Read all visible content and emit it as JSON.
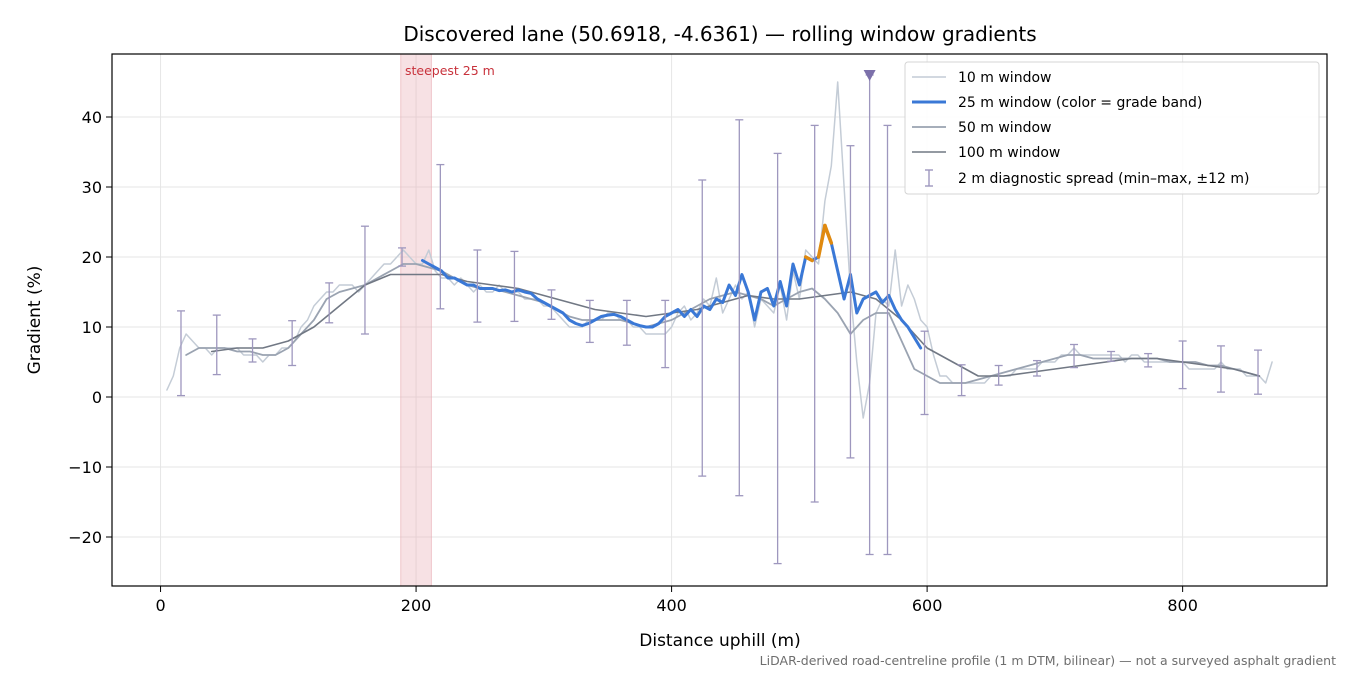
{
  "chart_data": {
    "type": "line",
    "title": "Discovered lane (50.6918, -4.6361) — rolling window gradients",
    "xlabel": "Distance uphill (m)",
    "ylabel": "Gradient (%)",
    "xlim": [
      -38,
      913
    ],
    "ylim": [
      -27,
      49
    ],
    "x_ticks": [
      0,
      200,
      400,
      600,
      800
    ],
    "y_ticks": [
      -20,
      -10,
      0,
      10,
      20,
      30,
      40
    ],
    "grid": true,
    "legend_position": "top-right",
    "footnote": "LiDAR-derived road-centreline profile (1 m DTM, bilinear) — not a surveyed asphalt gradient",
    "colors": {
      "w10": "#c4ccd6",
      "w25": "#3a78d6",
      "w25_steep": "#e08a10",
      "w50": "#9aa3b1",
      "w100": "#717884",
      "spread": "#9e97be",
      "steepest_band": "#e8aab2",
      "marker": "#7c70aa",
      "annotation": "#c8323c"
    },
    "steepest_window": {
      "label": "steepest 25 m",
      "x_start": 188,
      "x_end": 212
    },
    "peak_marker": {
      "x": 555,
      "y": 46
    },
    "legend": [
      {
        "key": "w10",
        "label": "10 m window"
      },
      {
        "key": "w25",
        "label": "25 m window (color = grade band)"
      },
      {
        "key": "w50",
        "label": "50 m window"
      },
      {
        "key": "w100",
        "label": "100 m window"
      },
      {
        "key": "spread",
        "label": "2 m diagnostic spread (min–max, ±12 m)"
      }
    ],
    "series": [
      {
        "name": "10 m window",
        "x": [
          5,
          10,
          15,
          20,
          25,
          30,
          35,
          40,
          45,
          50,
          55,
          60,
          65,
          70,
          75,
          80,
          85,
          90,
          95,
          100,
          105,
          110,
          115,
          120,
          125,
          130,
          135,
          140,
          145,
          150,
          155,
          160,
          165,
          170,
          175,
          180,
          185,
          190,
          195,
          200,
          205,
          210,
          215,
          220,
          225,
          230,
          235,
          240,
          245,
          250,
          255,
          260,
          265,
          270,
          275,
          280,
          285,
          290,
          295,
          300,
          305,
          310,
          315,
          320,
          325,
          330,
          335,
          340,
          345,
          350,
          355,
          360,
          365,
          370,
          375,
          380,
          385,
          390,
          395,
          400,
          405,
          410,
          415,
          420,
          425,
          430,
          435,
          440,
          445,
          450,
          455,
          460,
          465,
          470,
          475,
          480,
          485,
          490,
          495,
          500,
          505,
          510,
          515,
          520,
          525,
          530,
          535,
          540,
          545,
          550,
          555,
          560,
          565,
          570,
          575,
          580,
          585,
          590,
          595,
          600,
          605,
          610,
          615,
          620,
          625,
          630,
          635,
          640,
          645,
          650,
          655,
          660,
          665,
          670,
          675,
          680,
          685,
          690,
          695,
          700,
          705,
          710,
          715,
          720,
          725,
          730,
          735,
          740,
          745,
          750,
          755,
          760,
          765,
          770,
          775,
          780,
          785,
          790,
          795,
          800,
          805,
          810,
          815,
          820,
          825,
          830,
          835,
          840,
          845,
          850,
          855,
          860,
          865,
          870
        ],
        "y": [
          1,
          3,
          7,
          9,
          8,
          7,
          7,
          6,
          7,
          7,
          7,
          7,
          6,
          6,
          6,
          5,
          6,
          6,
          7,
          7,
          8,
          10,
          11,
          13,
          14,
          15,
          15,
          16,
          16,
          16,
          15,
          16,
          17,
          18,
          19,
          19,
          20,
          21,
          20,
          19,
          19,
          21,
          18,
          17,
          17,
          16,
          17,
          16,
          15,
          16,
          15,
          15,
          16,
          15,
          15,
          15,
          14,
          14,
          14,
          13,
          13,
          12,
          11,
          10,
          10,
          10,
          11,
          11,
          11,
          12,
          12,
          11,
          11,
          10,
          10,
          9,
          9,
          9,
          9,
          10,
          12,
          13,
          11,
          12,
          14,
          13,
          17,
          12,
          14,
          16,
          14,
          15,
          10,
          14,
          13,
          12,
          16,
          11,
          18,
          14,
          21,
          20,
          19,
          28,
          33,
          45,
          30,
          15,
          5,
          -3,
          2,
          12,
          14,
          13,
          21,
          13,
          16,
          14,
          11,
          10,
          6,
          3,
          3,
          2,
          2,
          2,
          2,
          2,
          2,
          3,
          3,
          3,
          3,
          4,
          4,
          4,
          4,
          5,
          5,
          5,
          6,
          6,
          7,
          6,
          6,
          6,
          6,
          6,
          6,
          6,
          5,
          6,
          6,
          5,
          5,
          5,
          5,
          5,
          5,
          5,
          4,
          4,
          4,
          4,
          4,
          5,
          4,
          4,
          4,
          3,
          3,
          3,
          2,
          5
        ]
      },
      {
        "name": "25 m window (color = grade band)",
        "x": [
          205,
          210,
          215,
          220,
          225,
          230,
          235,
          240,
          245,
          250,
          255,
          260,
          265,
          270,
          275,
          280,
          285,
          290,
          295,
          300,
          305,
          310,
          315,
          320,
          325,
          330,
          335,
          340,
          345,
          350,
          355,
          360,
          365,
          370,
          375,
          380,
          385,
          390,
          395,
          400,
          405,
          410,
          415,
          420,
          425,
          430,
          435,
          440,
          445,
          450,
          455,
          460,
          465,
          470,
          475,
          480,
          485,
          490,
          495,
          500,
          505,
          510,
          515,
          520,
          525,
          530,
          535,
          540,
          545,
          550,
          555,
          560,
          565,
          570,
          575,
          580,
          585,
          590,
          595
        ],
        "y": [
          19.5,
          19,
          18.5,
          18,
          17,
          17,
          16.5,
          16,
          16,
          15.5,
          15.5,
          15.5,
          15.2,
          15.3,
          15,
          15.3,
          15,
          14.8,
          14,
          13.5,
          13,
          12.5,
          12,
          11,
          10.5,
          10.2,
          10.5,
          11,
          11.5,
          11.7,
          11.8,
          11.5,
          11,
          10.5,
          10.2,
          10,
          10,
          10.5,
          11.5,
          12,
          12.5,
          11.5,
          12.5,
          11.5,
          13,
          12.5,
          14,
          13.5,
          16,
          14.5,
          17.5,
          15,
          11,
          15,
          15.5,
          13,
          16.5,
          13,
          19,
          16,
          20,
          19.5,
          20,
          24.5,
          22,
          18,
          14,
          17.5,
          12,
          14,
          14.5,
          15,
          13.5,
          14.5,
          12.5,
          11,
          10,
          8.5,
          7
        ]
      },
      {
        "name": "50 m window",
        "x": [
          20,
          30,
          40,
          50,
          60,
          70,
          80,
          90,
          100,
          110,
          120,
          130,
          140,
          150,
          160,
          170,
          180,
          190,
          200,
          210,
          220,
          230,
          240,
          250,
          260,
          270,
          280,
          290,
          300,
          310,
          320,
          330,
          340,
          350,
          360,
          370,
          380,
          390,
          400,
          410,
          420,
          430,
          440,
          450,
          460,
          470,
          480,
          490,
          500,
          510,
          520,
          530,
          540,
          550,
          560,
          570,
          580,
          590,
          600,
          610,
          620,
          630,
          640,
          650,
          660,
          670,
          680,
          690,
          700,
          710,
          720,
          730,
          740,
          750,
          760,
          770,
          780,
          790,
          800,
          810,
          820,
          830,
          840,
          850,
          860
        ],
        "y": [
          6,
          7,
          7,
          7,
          6.5,
          6.5,
          6,
          6,
          7,
          9,
          11,
          14,
          15,
          15.5,
          16,
          17,
          18,
          19,
          19,
          18.5,
          18,
          17,
          16,
          15.5,
          15.5,
          15,
          14.5,
          14,
          13.5,
          12.5,
          11.5,
          11,
          11,
          11,
          11,
          10.5,
          10,
          10.5,
          11,
          12,
          13,
          14,
          14.5,
          15,
          14.5,
          14,
          13,
          14,
          15,
          15.5,
          14,
          12,
          9,
          11,
          12,
          12,
          8,
          4,
          3,
          2,
          2,
          2,
          2.5,
          3,
          3.5,
          4,
          4.5,
          5,
          5.5,
          6,
          6,
          5.5,
          5.5,
          5.5,
          5.5,
          5.5,
          5.5,
          5,
          5,
          5,
          4.5,
          4.5,
          4,
          3.5,
          3
        ]
      },
      {
        "name": "100 m window",
        "x": [
          40,
          60,
          80,
          100,
          120,
          140,
          160,
          180,
          200,
          220,
          240,
          260,
          280,
          300,
          320,
          340,
          360,
          380,
          400,
          420,
          440,
          460,
          480,
          500,
          520,
          540,
          560,
          580,
          600,
          620,
          640,
          660,
          680,
          700,
          720,
          740,
          760,
          780,
          800,
          820,
          840,
          860
        ],
        "y": [
          6.5,
          7,
          7,
          8,
          10,
          13,
          16,
          17.5,
          17.5,
          17.5,
          16.5,
          16,
          15.5,
          14.5,
          13.5,
          12.5,
          12,
          11.5,
          12,
          12.5,
          13.5,
          14.5,
          14,
          14,
          14.5,
          15,
          14,
          11,
          7,
          5,
          3,
          3,
          3.5,
          4,
          4.5,
          5,
          5.5,
          5.5,
          5,
          4.5,
          4,
          3
        ]
      }
    ],
    "error_bars": {
      "name": "2 m diagnostic spread (min–max, ±12 m)",
      "points": [
        {
          "x": 16,
          "y": 6.5,
          "min": 0.2,
          "max": 12.3
        },
        {
          "x": 44,
          "y": 7,
          "min": 3.2,
          "max": 11.7
        },
        {
          "x": 72,
          "y": 6.5,
          "min": 5,
          "max": 8.3
        },
        {
          "x": 103,
          "y": 7.5,
          "min": 4.5,
          "max": 10.9
        },
        {
          "x": 132,
          "y": 13.5,
          "min": 10.6,
          "max": 16.3
        },
        {
          "x": 160,
          "y": 16,
          "min": 9,
          "max": 24.4
        },
        {
          "x": 189,
          "y": 19.5,
          "min": 18.7,
          "max": 21.3
        },
        {
          "x": 219,
          "y": 18,
          "min": 12.6,
          "max": 33.2
        },
        {
          "x": 248,
          "y": 16,
          "min": 10.7,
          "max": 21
        },
        {
          "x": 277,
          "y": 15.5,
          "min": 10.8,
          "max": 20.8
        },
        {
          "x": 306,
          "y": 13,
          "min": 11.1,
          "max": 15.3
        },
        {
          "x": 336,
          "y": 11,
          "min": 7.8,
          "max": 13.8
        },
        {
          "x": 365,
          "y": 11.5,
          "min": 7.4,
          "max": 13.8
        },
        {
          "x": 395,
          "y": 10,
          "min": 4.2,
          "max": 13.8
        },
        {
          "x": 424,
          "y": 12,
          "min": -11.3,
          "max": 31
        },
        {
          "x": 453,
          "y": 14,
          "min": -14.1,
          "max": 39.6
        },
        {
          "x": 483,
          "y": 14,
          "min": -23.8,
          "max": 34.8
        },
        {
          "x": 512,
          "y": 16,
          "min": -15,
          "max": 38.8
        },
        {
          "x": 540,
          "y": 14,
          "min": -8.7,
          "max": 35.9
        },
        {
          "x": 555,
          "y": 14,
          "min": -22.5,
          "max": 46
        },
        {
          "x": 569,
          "y": 13,
          "min": -22.5,
          "max": 38.8
        },
        {
          "x": 598,
          "y": 5,
          "min": -2.5,
          "max": 9.4
        },
        {
          "x": 627,
          "y": 2,
          "min": 0.2,
          "max": 4.6
        },
        {
          "x": 656,
          "y": 3,
          "min": 1.7,
          "max": 4.5
        },
        {
          "x": 686,
          "y": 4,
          "min": 3,
          "max": 5.2
        },
        {
          "x": 715,
          "y": 5.5,
          "min": 4.2,
          "max": 7.5
        },
        {
          "x": 744,
          "y": 6,
          "min": 5.1,
          "max": 6.5
        },
        {
          "x": 773,
          "y": 5.5,
          "min": 4.3,
          "max": 6.2
        },
        {
          "x": 800,
          "y": 4.5,
          "min": 1.2,
          "max": 8
        },
        {
          "x": 830,
          "y": 4.5,
          "min": 0.7,
          "max": 7.3
        },
        {
          "x": 859,
          "y": 3,
          "min": 0.4,
          "max": 6.7
        }
      ]
    }
  }
}
